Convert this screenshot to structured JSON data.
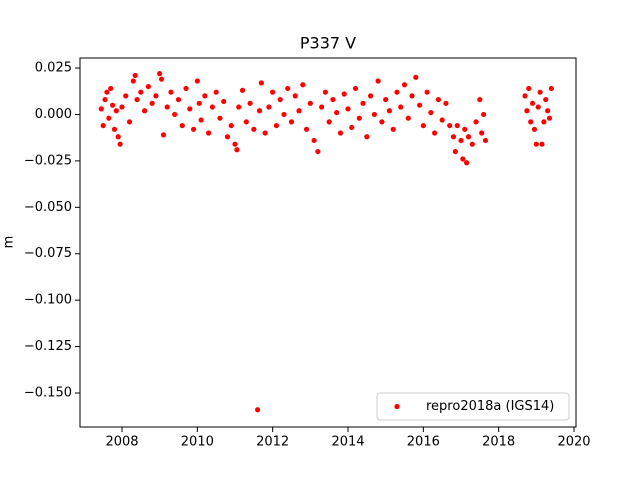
{
  "chart_data": {
    "type": "scatter",
    "title": "P337 V",
    "y_label": "m",
    "x": [
      2007.45,
      2007.5,
      2007.55,
      2007.6,
      2007.65,
      2007.7,
      2007.75,
      2007.8,
      2007.85,
      2007.9,
      2007.95,
      2008.0,
      2008.1,
      2008.2,
      2008.3,
      2008.35,
      2008.4,
      2008.5,
      2008.6,
      2008.7,
      2008.8,
      2008.9,
      2009.0,
      2009.05,
      2009.1,
      2009.2,
      2009.3,
      2009.4,
      2009.5,
      2009.6,
      2009.7,
      2009.8,
      2009.9,
      2010.0,
      2010.05,
      2010.1,
      2010.2,
      2010.3,
      2010.4,
      2010.5,
      2010.6,
      2010.7,
      2010.8,
      2010.9,
      2011.0,
      2011.05,
      2011.1,
      2011.2,
      2011.3,
      2011.4,
      2011.5,
      2011.6,
      2011.65,
      2011.7,
      2011.8,
      2011.9,
      2012.0,
      2012.1,
      2012.2,
      2012.3,
      2012.4,
      2012.5,
      2012.6,
      2012.7,
      2012.8,
      2012.9,
      2013.0,
      2013.1,
      2013.2,
      2013.3,
      2013.4,
      2013.5,
      2013.6,
      2013.7,
      2013.8,
      2013.9,
      2014.0,
      2014.1,
      2014.2,
      2014.3,
      2014.4,
      2014.5,
      2014.6,
      2014.7,
      2014.8,
      2014.9,
      2015.0,
      2015.1,
      2015.2,
      2015.3,
      2015.4,
      2015.5,
      2015.6,
      2015.7,
      2015.8,
      2015.9,
      2016.0,
      2016.1,
      2016.2,
      2016.3,
      2016.4,
      2016.5,
      2016.6,
      2016.7,
      2016.8,
      2016.85,
      2016.9,
      2017.0,
      2017.05,
      2017.1,
      2017.15,
      2017.2,
      2017.3,
      2017.4,
      2017.5,
      2017.55,
      2017.6,
      2017.65,
      2018.7,
      2018.75,
      2018.8,
      2018.85,
      2018.9,
      2018.95,
      2019.0,
      2019.05,
      2019.1,
      2019.15,
      2019.2,
      2019.25,
      2019.3,
      2019.35,
      2019.4
    ],
    "series": [
      {
        "name": "repro2018a (IGS14)",
        "color": "#ff0000",
        "values": [
          0.003,
          -0.006,
          0.008,
          0.012,
          -0.002,
          0.014,
          0.005,
          -0.008,
          0.002,
          -0.012,
          -0.016,
          0.004,
          0.01,
          -0.004,
          0.018,
          0.021,
          0.008,
          0.012,
          0.002,
          0.015,
          0.006,
          0.01,
          0.022,
          0.019,
          -0.011,
          0.004,
          0.012,
          0.0,
          0.008,
          -0.006,
          0.014,
          0.003,
          -0.008,
          0.018,
          0.006,
          -0.003,
          0.01,
          -0.01,
          0.004,
          0.012,
          -0.002,
          0.007,
          -0.012,
          -0.006,
          -0.016,
          -0.019,
          0.004,
          0.013,
          -0.004,
          0.006,
          -0.008,
          -0.159,
          0.002,
          0.017,
          -0.01,
          0.004,
          0.012,
          -0.006,
          0.008,
          0.0,
          0.014,
          -0.004,
          0.01,
          0.002,
          0.016,
          -0.008,
          0.006,
          -0.014,
          -0.02,
          0.004,
          0.012,
          -0.004,
          0.008,
          0.001,
          -0.01,
          0.011,
          0.003,
          -0.007,
          0.014,
          -0.002,
          0.006,
          -0.012,
          0.01,
          0.0,
          0.018,
          -0.004,
          0.008,
          0.002,
          -0.008,
          0.012,
          0.004,
          0.016,
          -0.002,
          0.01,
          0.02,
          0.005,
          -0.006,
          0.012,
          0.001,
          -0.01,
          0.008,
          -0.003,
          0.006,
          -0.006,
          -0.012,
          -0.02,
          -0.006,
          -0.014,
          -0.024,
          -0.008,
          -0.026,
          -0.012,
          -0.016,
          -0.004,
          0.008,
          -0.01,
          0.0,
          -0.014,
          0.01,
          0.002,
          0.014,
          -0.004,
          0.006,
          -0.008,
          -0.016,
          0.004,
          0.012,
          -0.016,
          -0.004,
          0.008,
          0.002,
          -0.002,
          0.014
        ]
      }
    ],
    "xlim": [
      2006.885,
      2020.053
    ],
    "ylim": [
      -0.1683,
      0.0304
    ],
    "xticks": [
      2008,
      2010,
      2012,
      2014,
      2016,
      2018,
      2020
    ],
    "yticks": [
      {
        "value": 0.025,
        "label": "0.025"
      },
      {
        "value": 0,
        "label": "0.000"
      },
      {
        "value": -0.025,
        "label": "−0.025"
      },
      {
        "value": -0.05,
        "label": "−0.050"
      },
      {
        "value": -0.075,
        "label": "−0.075"
      },
      {
        "value": -0.1,
        "label": "−0.100"
      },
      {
        "value": -0.125,
        "label": "−0.125"
      },
      {
        "value": -0.15,
        "label": "−0.150"
      }
    ],
    "legend": "lower right"
  }
}
